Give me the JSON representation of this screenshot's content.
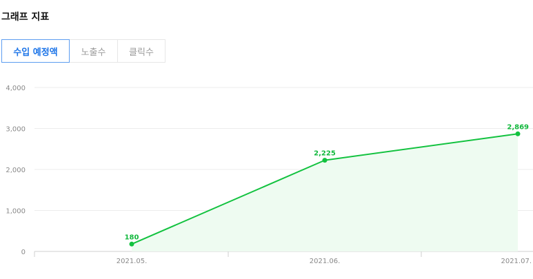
{
  "header": {
    "title": "그래프 지표"
  },
  "tabs": [
    {
      "label": "수입 예정액",
      "active": true
    },
    {
      "label": "노출수",
      "active": false
    },
    {
      "label": "클릭수",
      "active": false
    }
  ],
  "colors": {
    "line": "#12c23f",
    "area": "#eefbf1",
    "active_tab": "#1a73e8"
  },
  "chart_data": {
    "type": "line",
    "x": [
      "2021.05.",
      "2021.06.",
      "2021.07."
    ],
    "series": [
      {
        "values": [
          180,
          2225,
          2869
        ]
      }
    ],
    "data_labels": [
      "180",
      "2,225",
      "2,869"
    ],
    "yticks": [
      0,
      1000,
      2000,
      3000,
      4000
    ],
    "ytick_labels": [
      "0",
      "1,000",
      "2,000",
      "3,000",
      "4,000"
    ],
    "ylim": [
      0,
      4000
    ],
    "grid": true,
    "area_fill": true,
    "legend": "none"
  }
}
